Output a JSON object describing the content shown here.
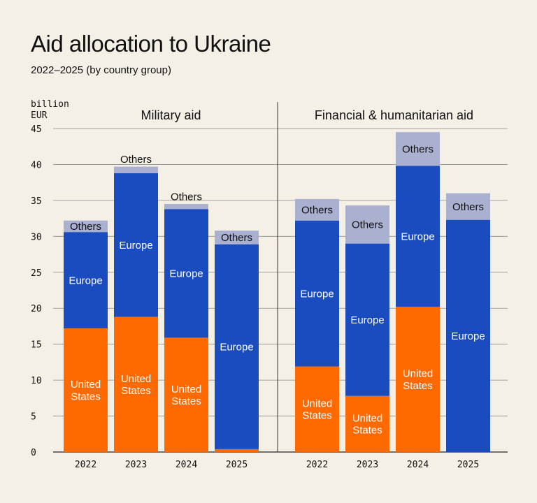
{
  "header": {
    "title": "Aid allocation to Ukraine",
    "subtitle": "2022–2025 (by country group)"
  },
  "colors": {
    "background": "#f5f0e6",
    "united_states": "#ff6a00",
    "europe": "#1a4cc0",
    "others": "#aab0d0",
    "grid": "#8a8a8a",
    "text_dark": "#111111",
    "text_light": "#ffffff"
  },
  "chart_data": {
    "type": "bar",
    "stacked": true,
    "ylabel": "billion\nEUR",
    "ylim": [
      0,
      45
    ],
    "yticks": [
      0,
      5,
      10,
      15,
      20,
      25,
      30,
      35,
      40,
      45
    ],
    "grid": true,
    "segment_labels": {
      "united_states": "United\nStates",
      "europe": "Europe",
      "others": "Others"
    },
    "panels": [
      {
        "title": "Military aid",
        "categories": [
          "2022",
          "2023",
          "2024",
          "2025"
        ],
        "series": [
          {
            "key": "united_states",
            "values": [
              17.2,
              18.8,
              15.9,
              0.4
            ]
          },
          {
            "key": "europe",
            "values": [
              13.4,
              20.0,
              17.9,
              28.5
            ]
          },
          {
            "key": "others",
            "values": [
              1.6,
              0.9,
              0.7,
              1.9
            ]
          }
        ],
        "label_positions": {
          "others": [
            "inside",
            "above",
            "above",
            "inside"
          ],
          "united_states": [
            "inside",
            "inside",
            "inside",
            "none"
          ]
        }
      },
      {
        "title": "Financial & humanitarian aid",
        "categories": [
          "2022",
          "2023",
          "2024",
          "2025"
        ],
        "series": [
          {
            "key": "united_states",
            "values": [
              11.9,
              7.8,
              20.2,
              0
            ]
          },
          {
            "key": "europe",
            "values": [
              20.3,
              21.2,
              19.6,
              32.3
            ]
          },
          {
            "key": "others",
            "values": [
              3.0,
              5.3,
              4.7,
              3.7
            ]
          }
        ],
        "label_positions": {
          "others": [
            "inside",
            "inside",
            "inside",
            "inside"
          ],
          "united_states": [
            "inside",
            "inside",
            "inside",
            "none"
          ]
        }
      }
    ]
  }
}
